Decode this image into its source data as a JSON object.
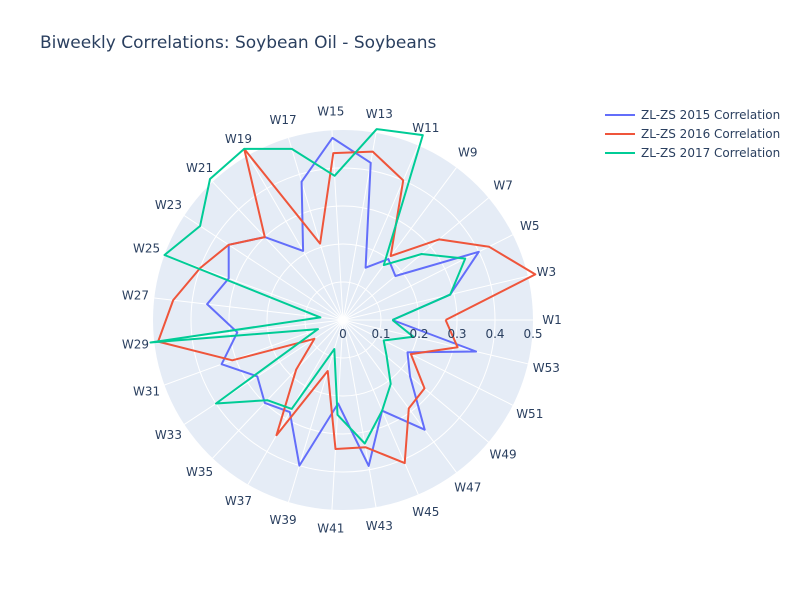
{
  "chart_data": {
    "type": "radar",
    "title": "Biweekly Correlations: Soybean Oil - Soybeans",
    "theta_labels": [
      "W1",
      "W3",
      "W5",
      "W7",
      "W9",
      "W11",
      "W13",
      "W15",
      "W17",
      "W19",
      "W21",
      "W23",
      "W25",
      "W27",
      "W29",
      "W31",
      "W33",
      "W35",
      "W37",
      "W39",
      "W41",
      "W43",
      "W45",
      "W47",
      "W49",
      "W51",
      "W53"
    ],
    "radial_ticks": [
      0,
      0.1,
      0.2,
      0.3,
      0.4,
      0.5
    ],
    "radial_range": [
      0,
      0.5
    ],
    "series": [
      {
        "name": "ZL-ZS 2015 Correlation",
        "color": "#636efa",
        "values": [
          0.13,
          0.29,
          0.4,
          0.18,
          0.2,
          0.15,
          0.42,
          0.48,
          0.38,
          0.21,
          0.3,
          0.36,
          0.32,
          0.36,
          0.28,
          0.34,
          0.27,
          0.3,
          0.28,
          0.4,
          0.22,
          0.39,
          0.26,
          0.36,
          0.23,
          0.19,
          0.36
        ]
      },
      {
        "name": "ZL-ZS 2016 Correlation",
        "color": "#ef553b",
        "values": [
          0.27,
          0.52,
          0.43,
          0.33,
          0.21,
          0.4,
          0.45,
          0.44,
          0.21,
          0.52,
          0.3,
          0.36,
          0.4,
          0.45,
          0.49,
          0.31,
          0.09,
          0.18,
          0.35,
          0.14,
          0.34,
          0.34,
          0.41,
          0.29,
          0.28,
          0.2,
          0.31
        ]
      },
      {
        "name": "ZL-ZS 2017 Correlation",
        "color": "#00cc96",
        "values": [
          0.13,
          0.29,
          0.36,
          0.27,
          0.18,
          0.53,
          0.51,
          0.38,
          0.47,
          0.52,
          0.51,
          0.45,
          0.5,
          0.06,
          0.51,
          0.07,
          0.4,
          0.29,
          0.27,
          0.08,
          0.25,
          0.33,
          0.26,
          0.21,
          0.15,
          0.12,
          0.19
        ]
      }
    ]
  }
}
